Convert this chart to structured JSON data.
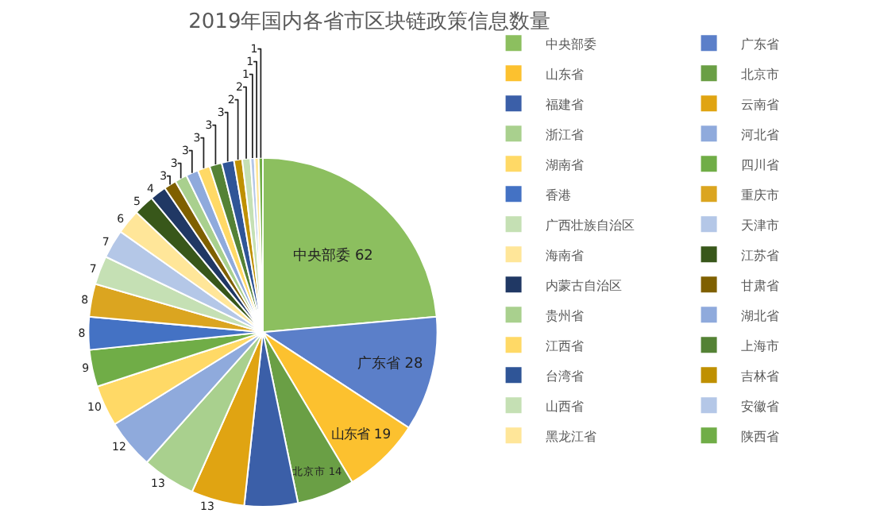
{
  "chart_data": {
    "type": "pie",
    "title": "2019年国内各省市区块链政策信息数量",
    "categories": [
      "中央部委",
      "广东省",
      "山东省",
      "北京市",
      "福建省",
      "云南省",
      "浙江省",
      "河北省",
      "湖南省",
      "四川省",
      "香港",
      "重庆市",
      "广西壮族自治区",
      "天津市",
      "海南省",
      "江苏省",
      "内蒙古自治区",
      "甘肃省",
      "贵州省",
      "湖北省",
      "江西省",
      "上海市",
      "台湾省",
      "吉林省",
      "山西省",
      "安徽省",
      "黑龙江省",
      "陕西省"
    ],
    "values": [
      62,
      28,
      19,
      14,
      13,
      13,
      13,
      12,
      10,
      9,
      8,
      8,
      7,
      7,
      6,
      5,
      4,
      3,
      3,
      3,
      3,
      3,
      3,
      2,
      2,
      1,
      1,
      1
    ],
    "value_labels": [
      "中央部委 62",
      "广东省 28",
      "山东省 19",
      "北京市 14",
      null,
      "13",
      "13",
      "12",
      "10",
      "9",
      "8",
      "8",
      "7",
      "7",
      "6",
      "5",
      "4",
      "3",
      "3",
      "3",
      "3",
      "3",
      "3",
      "2",
      "2",
      "1",
      "1",
      "1"
    ],
    "colors": [
      "#8cbf5f",
      "#5b7fc9",
      "#fcc12f",
      "#6a9f45",
      "#3b5fa8",
      "#e0a412",
      "#a9d08e",
      "#8faadc",
      "#ffd966",
      "#70ad47",
      "#4472c4",
      "#dba520",
      "#c5e0b4",
      "#b4c7e7",
      "#ffe699",
      "#38571a",
      "#203864",
      "#7f6000",
      "#a9d08e",
      "#8faadc",
      "#ffd966",
      "#548235",
      "#2f5597",
      "#bf9000",
      "#c5e0b4",
      "#b4c7e7",
      "#ffe699",
      "#70ad47"
    ],
    "legend": "right"
  }
}
